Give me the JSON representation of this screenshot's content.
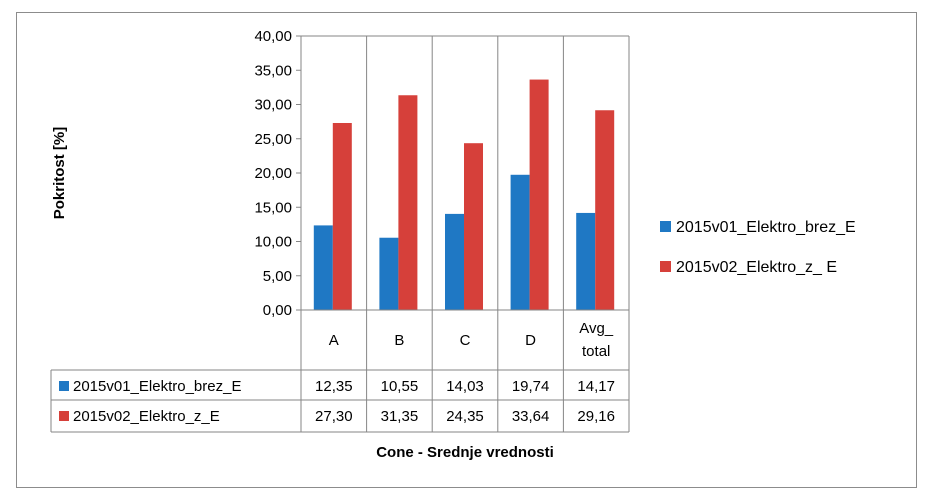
{
  "chart_data": {
    "type": "bar",
    "title": "",
    "xlabel": "Cone - Srednje vrednosti",
    "ylabel": "Pokritost [%]",
    "ylim": [
      0,
      40
    ],
    "yticks": [
      "0,00",
      "5,00",
      "10,00",
      "15,00",
      "20,00",
      "25,00",
      "30,00",
      "35,00",
      "40,00"
    ],
    "grid": "vertical category lines",
    "legend_position": "right",
    "categories": [
      "A",
      "B",
      "C",
      "D",
      "Avg_ total"
    ],
    "series": [
      {
        "name": "2015v01_Elektro_brez_E",
        "color": "#1f78c4",
        "values": [
          12.35,
          10.55,
          14.03,
          19.74,
          14.17
        ],
        "labels": [
          "12,35",
          "10,55",
          "14,03",
          "19,74",
          "14,17"
        ]
      },
      {
        "name": "2015v02_Elektro_z_ E",
        "color": "#d6403a",
        "values": [
          27.3,
          31.35,
          24.35,
          33.64,
          29.16
        ],
        "labels": [
          "27,30",
          "31,35",
          "24,35",
          "33,64",
          "29,16"
        ]
      }
    ],
    "table_series_names": [
      "2015v01_Elektro_brez_E",
      "2015v02_Elektro_z_E"
    ]
  }
}
